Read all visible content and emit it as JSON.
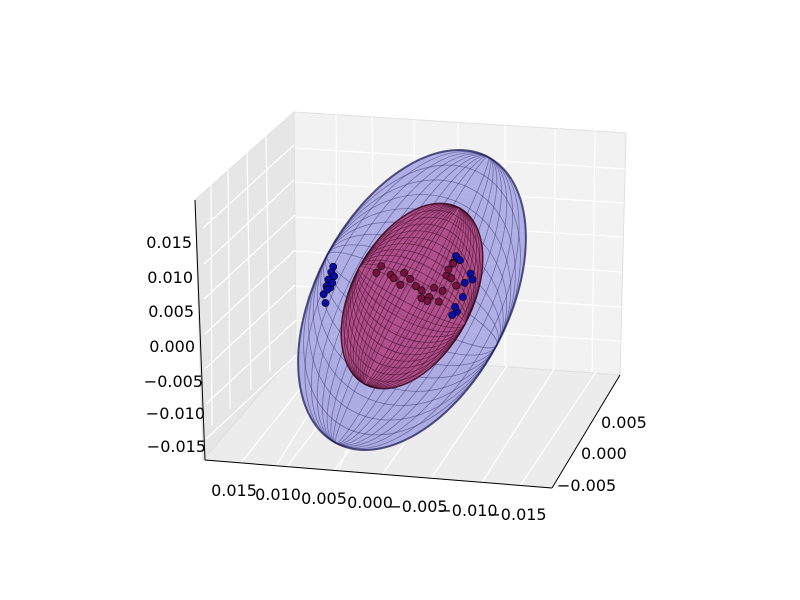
{
  "chart_data": {
    "type": "scatter",
    "projection": "3d",
    "title": "",
    "xlabel": "",
    "ylabel": "",
    "zlabel": "",
    "grid": true,
    "legend": "none",
    "x_axis": {
      "ticks": [
        0.015,
        0.01,
        0.005,
        0.0,
        -0.005,
        -0.01,
        -0.015
      ],
      "tick_labels": [
        "0.015",
        "0.010",
        "0.005",
        "0.000",
        "−0.005",
        "−0.010",
        "−0.015"
      ]
    },
    "y_axis": {
      "ticks": [
        0.005,
        0.0,
        -0.005
      ],
      "tick_labels": [
        "0.005",
        "0.000",
        "−0.005"
      ]
    },
    "z_axis": {
      "ticks": [
        0.015,
        0.01,
        0.005,
        0.0,
        -0.005,
        -0.01,
        -0.015
      ],
      "tick_labels": [
        "0.015",
        "0.010",
        "0.005",
        "0.000",
        "−0.005",
        "−0.010",
        "−0.015"
      ]
    },
    "surfaces": [
      {
        "kind": "ellipsoid",
        "role": "outer",
        "face_color": "#6b6bd8",
        "edge_color": "#1e1e5a"
      },
      {
        "kind": "ellipsoid",
        "role": "inner",
        "face_color": "#b0306e",
        "edge_color": "#3a0a20"
      }
    ],
    "scatter_series": [
      {
        "marker_color": "#0b0ba8",
        "points_xz": [
          [
            0.008,
            0.0057
          ],
          [
            0.0082,
            0.0049
          ],
          [
            0.0079,
            0.0043
          ],
          [
            0.0085,
            0.0038
          ],
          [
            0.0087,
            0.0028
          ],
          [
            0.009,
            0.0016
          ],
          [
            0.0088,
            0.0003
          ],
          [
            0.0083,
            0.0026
          ],
          [
            0.0081,
            0.0033
          ],
          [
            0.0086,
            0.0023
          ],
          [
            -0.0048,
            0.0073
          ],
          [
            -0.0052,
            0.0067
          ],
          [
            -0.0045,
            0.0063
          ],
          [
            -0.0063,
            0.0047
          ],
          [
            -0.0065,
            0.0038
          ],
          [
            -0.0057,
            0.0033
          ],
          [
            -0.0055,
            0.0012
          ],
          [
            -0.0049,
            -0.001
          ],
          [
            -0.0044,
            -0.0015
          ],
          [
            -0.0047,
            -0.0003
          ]
        ]
      },
      {
        "marker_color": "#7a1040",
        "points_xz": [
          [
            0.003,
            0.0058
          ],
          [
            0.002,
            0.0045
          ],
          [
            0.0035,
            0.0048
          ],
          [
            0.0017,
            0.004
          ],
          [
            0.0,
            0.0039
          ],
          [
            -0.0006,
            0.0028
          ],
          [
            -0.0012,
            0.0022
          ],
          [
            -0.002,
            0.0012
          ],
          [
            -0.003,
            0.0005
          ],
          [
            -0.0012,
            0.001
          ],
          [
            -0.0038,
            0.0044
          ],
          [
            -0.004,
            0.0053
          ],
          [
            -0.0043,
            0.004
          ],
          [
            -0.0045,
            0.0062
          ],
          [
            -0.0025,
            0.0026
          ],
          [
            0.001,
            0.003
          ],
          [
            -0.0034,
            0.0021
          ],
          [
            -0.0018,
            0.0006
          ],
          [
            0.0006,
            0.0048
          ],
          [
            -0.0048,
            0.0029
          ]
        ]
      }
    ]
  }
}
